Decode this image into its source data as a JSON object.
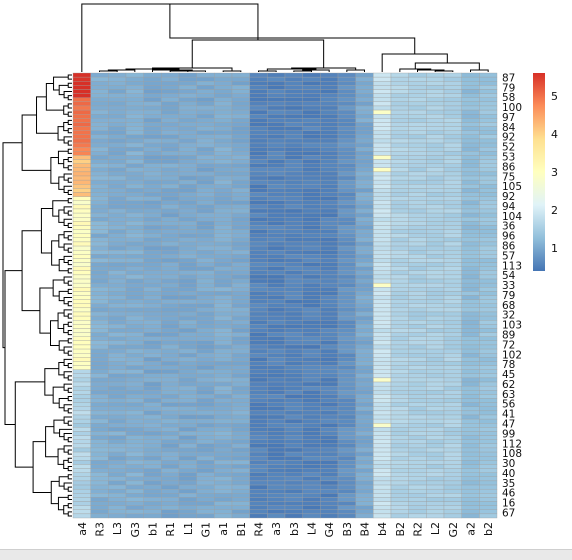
{
  "chart_data": {
    "type": "heatmap",
    "title": "",
    "xlabel": "",
    "ylabel": "",
    "color_scale": {
      "colors": [
        "#4575b4",
        "#91bfdb",
        "#e0f3f8",
        "#ffffbf",
        "#fee090",
        "#fc8d59",
        "#d73027"
      ],
      "min": 0.4,
      "max": 5.6
    },
    "legend_ticks": [
      "1",
      "2",
      "3",
      "4",
      "5"
    ],
    "legend_tick_values": [
      1,
      2,
      3,
      4,
      5
    ],
    "grid_color": "#9e9e9e",
    "columns": [
      "a4",
      "R3",
      "L3",
      "G3",
      "b1",
      "R1",
      "L1",
      "G1",
      "a1",
      "B1",
      "R4",
      "a3",
      "b3",
      "L4",
      "G4",
      "B3",
      "B4",
      "b4",
      "B2",
      "R2",
      "L2",
      "G2",
      "a2",
      "b2"
    ],
    "column_base_values": [
      3.0,
      1.08,
      1.05,
      1.07,
      1.0,
      1.0,
      1.0,
      1.0,
      1.05,
      1.02,
      0.55,
      0.55,
      0.55,
      0.55,
      0.55,
      0.72,
      1.0,
      1.85,
      1.6,
      1.55,
      1.55,
      1.55,
      1.25,
      1.35
    ],
    "row_labels_visible": [
      "87",
      "79",
      "58",
      "100",
      "97",
      "84",
      "92",
      "52",
      "53",
      "86",
      "75",
      "105",
      "92",
      "94",
      "104",
      "36",
      "96",
      "86",
      "57",
      "113",
      "54",
      "33",
      "79",
      "68",
      "32",
      "103",
      "89",
      "72",
      "102",
      "78",
      "45",
      "62",
      "63",
      "56",
      "41",
      "47",
      "99",
      "112",
      "108",
      "30",
      "40",
      "35",
      "46",
      "16",
      "67"
    ],
    "row_count": 108,
    "a4_profile": [
      {
        "from_row": 0,
        "to_row": 6,
        "value": 5.6
      },
      {
        "from_row": 6,
        "to_row": 20,
        "value": 4.9
      },
      {
        "from_row": 20,
        "to_row": 30,
        "value": 4.2
      },
      {
        "from_row": 30,
        "to_row": 72,
        "value": 3.0
      },
      {
        "from_row": 72,
        "to_row": 108,
        "value": 1.6
      }
    ]
  }
}
